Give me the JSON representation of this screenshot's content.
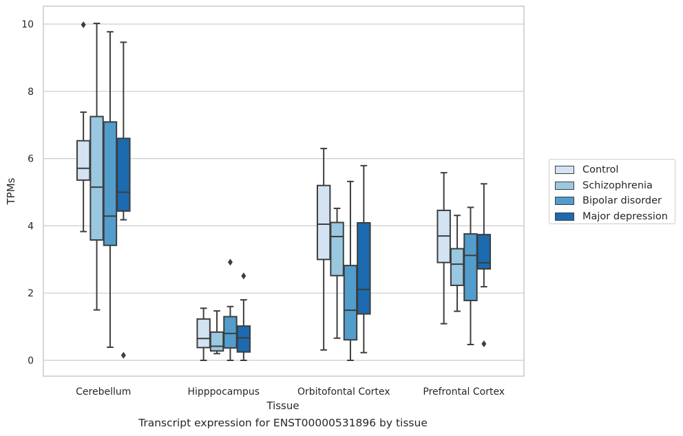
{
  "caption": "Transcript expression for ENST00000531896 by tissue",
  "chart_data": {
    "type": "box",
    "xlabel": "Tissue",
    "ylabel": "TPMs",
    "ylim": [
      -0.48,
      10.52
    ],
    "yticks": [
      0,
      2,
      4,
      6,
      8,
      10
    ],
    "grid": true,
    "legend_position": "right",
    "categories": [
      "Cerebellum",
      "Hipppocampus",
      "Orbitofontal Cortex",
      "Prefrontal Cortex"
    ],
    "series": [
      {
        "name": "Control",
        "color": "#d3e3f3",
        "boxes": [
          {
            "whisker_low": 3.83,
            "q1": 5.36,
            "median": 5.71,
            "q3": 6.53,
            "whisker_high": 7.38,
            "outliers": [
              9.98
            ]
          },
          {
            "whisker_low": 0.0,
            "q1": 0.38,
            "median": 0.65,
            "q3": 1.23,
            "whisker_high": 1.55,
            "outliers": []
          },
          {
            "whisker_low": 0.31,
            "q1": 3.0,
            "median": 4.05,
            "q3": 5.2,
            "whisker_high": 6.3,
            "outliers": []
          },
          {
            "whisker_low": 1.09,
            "q1": 2.91,
            "median": 3.7,
            "q3": 4.46,
            "whisker_high": 5.58,
            "outliers": []
          }
        ]
      },
      {
        "name": "Schizophrenia",
        "color": "#9ac8e0",
        "boxes": [
          {
            "whisker_low": 1.5,
            "q1": 3.58,
            "median": 5.15,
            "q3": 7.25,
            "whisker_high": 10.02,
            "outliers": []
          },
          {
            "whisker_low": 0.2,
            "q1": 0.28,
            "median": 0.42,
            "q3": 0.84,
            "whisker_high": 1.47,
            "outliers": []
          },
          {
            "whisker_low": 0.66,
            "q1": 2.52,
            "median": 3.68,
            "q3": 4.1,
            "whisker_high": 4.52,
            "outliers": []
          },
          {
            "whisker_low": 1.46,
            "q1": 2.23,
            "median": 2.86,
            "q3": 3.32,
            "whisker_high": 4.31,
            "outliers": []
          }
        ]
      },
      {
        "name": "Bipolar disorder",
        "color": "#529dcc",
        "boxes": [
          {
            "whisker_low": 0.39,
            "q1": 3.42,
            "median": 4.29,
            "q3": 7.09,
            "whisker_high": 9.77,
            "outliers": []
          },
          {
            "whisker_low": 0.0,
            "q1": 0.37,
            "median": 0.8,
            "q3": 1.3,
            "whisker_high": 1.6,
            "outliers": [
              2.92
            ]
          },
          {
            "whisker_low": 0.0,
            "q1": 0.61,
            "median": 1.49,
            "q3": 2.82,
            "whisker_high": 5.32,
            "outliers": []
          },
          {
            "whisker_low": 0.47,
            "q1": 1.78,
            "median": 3.12,
            "q3": 3.76,
            "whisker_high": 4.55,
            "outliers": []
          }
        ]
      },
      {
        "name": "Major depression",
        "color": "#1c6aaf",
        "boxes": [
          {
            "whisker_low": 4.18,
            "q1": 4.44,
            "median": 5.0,
            "q3": 6.6,
            "whisker_high": 9.46,
            "outliers": [
              0.15
            ]
          },
          {
            "whisker_low": 0.0,
            "q1": 0.25,
            "median": 0.67,
            "q3": 1.02,
            "whisker_high": 1.8,
            "outliers": [
              2.51
            ]
          },
          {
            "whisker_low": 0.23,
            "q1": 1.38,
            "median": 2.11,
            "q3": 4.09,
            "whisker_high": 5.79,
            "outliers": []
          },
          {
            "whisker_low": 2.19,
            "q1": 2.72,
            "median": 2.9,
            "q3": 3.74,
            "whisker_high": 5.25,
            "outliers": [
              0.49
            ]
          }
        ]
      }
    ]
  }
}
